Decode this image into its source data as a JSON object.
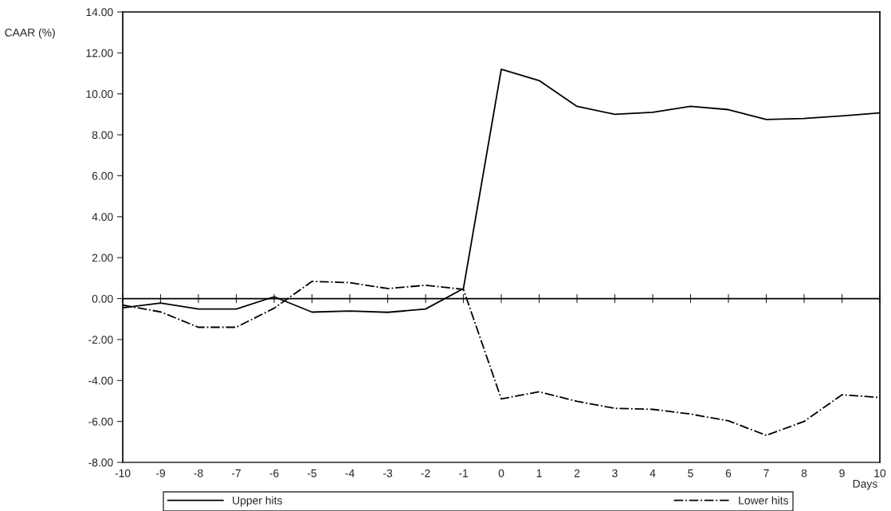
{
  "chart_data": {
    "type": "line",
    "xlabel": "Days",
    "ylabel": "CAAR (%)",
    "x": [
      -10,
      -9,
      -8,
      -7,
      -6,
      -5,
      -4,
      -3,
      -2,
      -1,
      0,
      1,
      2,
      3,
      4,
      5,
      6,
      7,
      8,
      9,
      10
    ],
    "series": [
      {
        "name": "Upper hits",
        "color": "#000000",
        "line_style": "solid",
        "values": [
          -0.45,
          -0.22,
          -0.51,
          -0.51,
          0.09,
          -0.66,
          -0.61,
          -0.67,
          -0.51,
          0.49,
          11.2,
          10.65,
          9.39,
          9.0,
          9.1,
          9.39,
          9.23,
          8.75,
          8.8,
          8.92,
          9.07
        ]
      },
      {
        "name": "Lower hits",
        "color": "#000000",
        "line_style": "dashdot",
        "values": [
          -0.32,
          -0.65,
          -1.4,
          -1.4,
          -0.47,
          0.84,
          0.78,
          0.49,
          0.65,
          0.45,
          -4.9,
          -4.55,
          -5.02,
          -5.36,
          -5.41,
          -5.64,
          -5.97,
          -6.68,
          -6.0,
          -4.7,
          -4.83
        ]
      }
    ],
    "xlim": [
      -10,
      10
    ],
    "xticks": [
      -10,
      -9,
      -8,
      -7,
      -6,
      -5,
      -4,
      -3,
      -2,
      -1,
      0,
      1,
      2,
      3,
      4,
      5,
      6,
      7,
      8,
      9,
      10
    ],
    "ylim": [
      -8,
      14
    ],
    "yticks": [
      {
        "value": -8,
        "label": "-8.00"
      },
      {
        "value": -6,
        "label": "-6.00"
      },
      {
        "value": -4,
        "label": "-4.00"
      },
      {
        "value": -2,
        "label": "-2.00"
      },
      {
        "value": 0,
        "label": "0.00"
      },
      {
        "value": 2,
        "label": "2.00"
      },
      {
        "value": 4,
        "label": "4.00"
      },
      {
        "value": 6,
        "label": "6.00"
      },
      {
        "value": 8,
        "label": "8.00"
      },
      {
        "value": 10,
        "label": "10.00"
      },
      {
        "value": 12,
        "label": "12.00"
      },
      {
        "value": 14,
        "label": "14.00"
      }
    ],
    "ref_lines": [
      {
        "axis": "y",
        "value": 0,
        "color": "#000000"
      }
    ],
    "legend": "bottom",
    "marker": "none"
  }
}
